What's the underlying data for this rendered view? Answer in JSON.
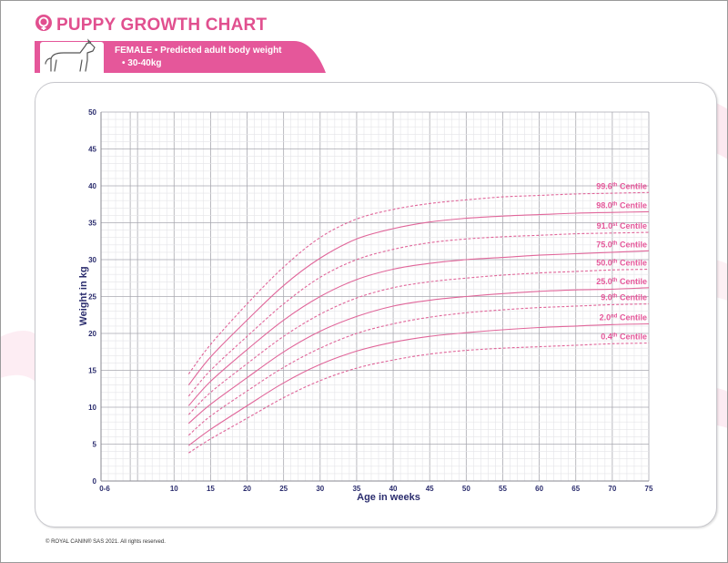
{
  "header": {
    "title": "PUPPY GROWTH CHART",
    "banner_line1": "FEMALE • Predicted adult body weight",
    "banner_line2": "• 30-40kg"
  },
  "footer": {
    "copyright": "© ROYAL CANIN® SAS 2021. All rights reserved."
  },
  "colors": {
    "brand_pink": "#e5579a",
    "axis_navy": "#2b2d6e",
    "curve_pink": "#e0669a",
    "grid_light": "#e4e4e8",
    "grid_dark": "#a9a9b0"
  },
  "icons": [
    "female-symbol-icon",
    "dog-icon"
  ],
  "chart_data": {
    "type": "line",
    "title": "PUPPY GROWTH CHART",
    "xlabel": "Age in weeks",
    "ylabel": "Weight in kg",
    "xlim": [
      0,
      75
    ],
    "ylim": [
      0,
      50
    ],
    "x_tick_labels": [
      "0-6",
      "10",
      "15",
      "20",
      "25",
      "30",
      "35",
      "40",
      "45",
      "50",
      "55",
      "60",
      "65",
      "70",
      "75"
    ],
    "y_tick_labels": [
      "0",
      "5",
      "10",
      "15",
      "20",
      "25",
      "30",
      "35",
      "40",
      "45",
      "50"
    ],
    "grid": true,
    "x": [
      12,
      15,
      20,
      25,
      30,
      35,
      40,
      45,
      50,
      55,
      60,
      65,
      70,
      75
    ],
    "series": [
      {
        "name": "99.6th Centile",
        "superscript": "th",
        "label_base": "99.6",
        "label_word": "Centile",
        "dashed": true,
        "values": [
          14.5,
          18.5,
          24.0,
          29.0,
          33.0,
          35.5,
          36.8,
          37.6,
          38.1,
          38.5,
          38.7,
          38.9,
          39.0,
          39.1
        ]
      },
      {
        "name": "98.0th Centile",
        "superscript": "th",
        "label_base": "98.0",
        "label_word": "Centile",
        "dashed": false,
        "values": [
          13.0,
          16.8,
          21.8,
          26.5,
          30.2,
          32.8,
          34.2,
          35.1,
          35.6,
          35.9,
          36.1,
          36.3,
          36.4,
          36.5
        ]
      },
      {
        "name": "91.0st Centile",
        "superscript": "st",
        "label_base": "91.0",
        "label_word": "Centile",
        "dashed": true,
        "values": [
          11.5,
          15.0,
          19.6,
          24.0,
          27.6,
          30.0,
          31.4,
          32.3,
          32.8,
          33.1,
          33.3,
          33.5,
          33.6,
          33.7
        ]
      },
      {
        "name": "75.0th Centile",
        "superscript": "th",
        "label_base": "75.0",
        "label_word": "Centile",
        "dashed": false,
        "values": [
          10.2,
          13.5,
          17.8,
          21.8,
          25.0,
          27.3,
          28.7,
          29.5,
          30.0,
          30.3,
          30.6,
          30.8,
          31.0,
          31.2
        ]
      },
      {
        "name": "50.0th Centile",
        "superscript": "th",
        "label_base": "50.0",
        "label_word": "Centile",
        "dashed": true,
        "values": [
          9.0,
          12.0,
          15.9,
          19.6,
          22.6,
          24.8,
          26.2,
          27.0,
          27.5,
          27.9,
          28.2,
          28.4,
          28.6,
          28.7
        ]
      },
      {
        "name": "25.0th Centile",
        "superscript": "th",
        "label_base": "25.0",
        "label_word": "Centile",
        "dashed": false,
        "values": [
          7.8,
          10.4,
          14.0,
          17.5,
          20.3,
          22.3,
          23.7,
          24.5,
          25.0,
          25.4,
          25.7,
          25.9,
          26.0,
          26.2
        ]
      },
      {
        "name": "9.0th Centile",
        "superscript": "th",
        "label_base": "9.0",
        "label_word": "Centile",
        "dashed": true,
        "values": [
          6.2,
          8.8,
          12.2,
          15.4,
          18.0,
          20.0,
          21.3,
          22.2,
          22.8,
          23.2,
          23.5,
          23.7,
          23.9,
          24.0
        ]
      },
      {
        "name": "2.0nd Centile",
        "superscript": "nd",
        "label_base": "2.0",
        "label_word": "Centile",
        "dashed": false,
        "values": [
          4.8,
          7.0,
          10.2,
          13.3,
          15.8,
          17.6,
          18.8,
          19.6,
          20.1,
          20.5,
          20.8,
          21.0,
          21.2,
          21.3
        ]
      },
      {
        "name": "0.4th Centile",
        "superscript": "th",
        "label_base": "0.4",
        "label_word": "Centile",
        "dashed": true,
        "values": [
          3.8,
          5.7,
          8.5,
          11.3,
          13.6,
          15.3,
          16.4,
          17.2,
          17.7,
          18.0,
          18.2,
          18.4,
          18.6,
          18.7
        ]
      }
    ]
  }
}
